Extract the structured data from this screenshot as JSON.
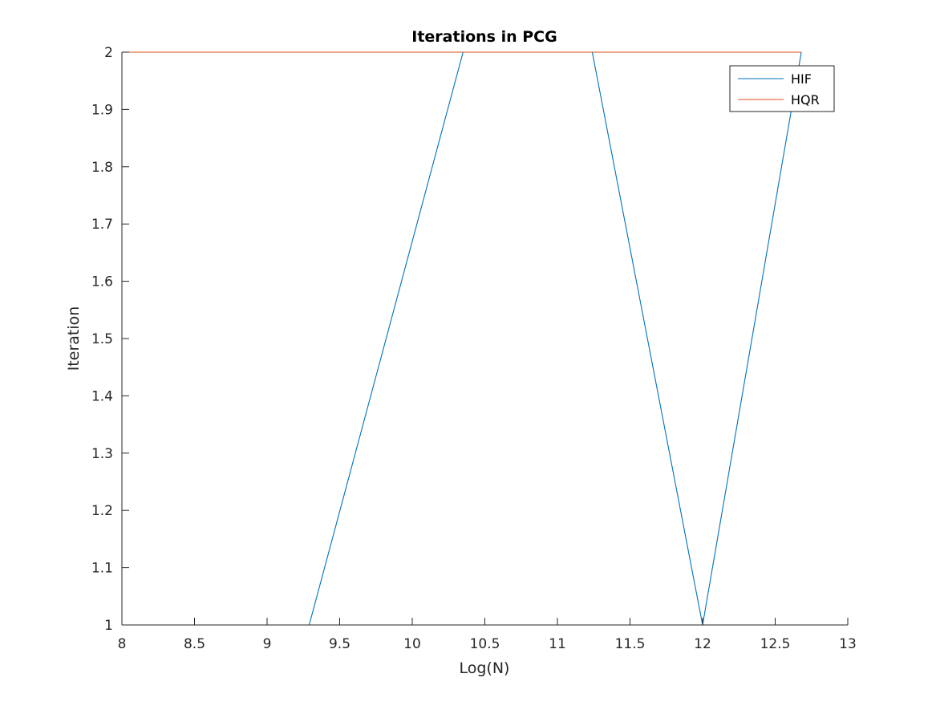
{
  "chart_data": {
    "type": "line",
    "title": "Iterations in PCG",
    "xlabel": "Log(N)",
    "ylabel": "Iteration",
    "xlim": [
      8,
      13
    ],
    "ylim": [
      1,
      2
    ],
    "xticks": [
      8,
      8.5,
      9,
      9.5,
      10,
      10.5,
      11,
      11.5,
      12,
      12.5,
      13
    ],
    "xtick_labels": [
      "8",
      "8.5",
      "9",
      "9.5",
      "10",
      "10.5",
      "11",
      "11.5",
      "12",
      "12.5",
      "13"
    ],
    "yticks": [
      1,
      1.1,
      1.2,
      1.3,
      1.4,
      1.5,
      1.6,
      1.7,
      1.8,
      1.9,
      2
    ],
    "ytick_labels": [
      "1",
      "1.1",
      "1.2",
      "1.3",
      "1.4",
      "1.5",
      "1.6",
      "1.7",
      "1.8",
      "1.9",
      "2"
    ],
    "grid": false,
    "legend_position": "top-right",
    "series": [
      {
        "name": "HIF",
        "color": "#0072BD",
        "x": [
          8.0,
          8.5,
          9.0,
          9.29,
          10.35,
          11.24,
          12.0,
          12.68
        ],
        "y": [
          1,
          1,
          1,
          1,
          2,
          2,
          1,
          2
        ]
      },
      {
        "name": "HQR",
        "color": "#D95319",
        "x": [
          8.0,
          12.68
        ],
        "y": [
          2,
          2
        ]
      }
    ]
  }
}
